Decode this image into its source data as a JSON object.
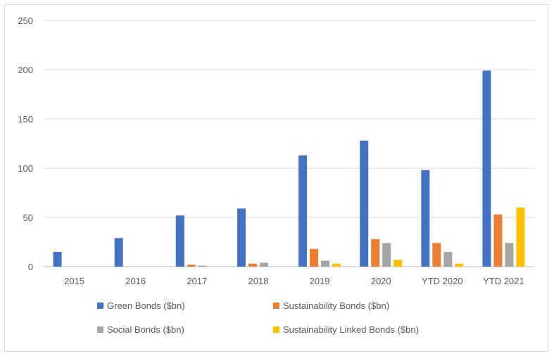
{
  "chart_data": {
    "type": "bar",
    "title": "",
    "xlabel": "",
    "ylabel": "",
    "categories": [
      "2015",
      "2016",
      "2017",
      "2018",
      "2019",
      "2020",
      "YTD 2020",
      "YTD 2021"
    ],
    "ylim": [
      0,
      250
    ],
    "yticks": [
      0,
      50,
      100,
      150,
      200,
      250
    ],
    "grid": true,
    "legend_position": "bottom",
    "series": [
      {
        "name": "Green Bonds ($bn)",
        "color": "#4472c4",
        "values": [
          15,
          29,
          52,
          59,
          113,
          128,
          98,
          199
        ]
      },
      {
        "name": "Sustainability Bonds ($bn)",
        "color": "#ed7d31",
        "values": [
          0,
          0,
          2,
          3,
          18,
          28,
          24,
          53
        ]
      },
      {
        "name": "Social Bonds ($bn)",
        "color": "#a5a5a5",
        "values": [
          0,
          0,
          1,
          4,
          6,
          24,
          15,
          24
        ]
      },
      {
        "name": "Sustainability Linked Bonds ($bn)",
        "color": "#ffc000",
        "values": [
          0,
          0,
          0,
          0,
          3,
          7,
          3,
          60
        ]
      }
    ]
  }
}
